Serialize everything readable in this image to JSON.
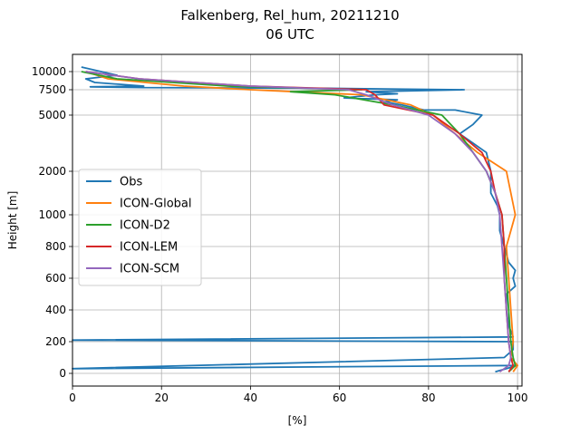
{
  "chart_data": {
    "type": "line",
    "title": "Falkenberg, Rel_hum, 20211210",
    "subtitle": "06 UTC",
    "xlabel": "[%]",
    "ylabel": "Height [m]",
    "xlim": [
      0,
      101
    ],
    "xticks": [
      0,
      20,
      40,
      60,
      80,
      100
    ],
    "yticks": [
      "0",
      "200",
      "400",
      "600",
      "800",
      "1000",
      "2000",
      "5000",
      "7500",
      "10000"
    ],
    "grid": true,
    "legend_position": "center-left",
    "series": [
      {
        "name": "Obs",
        "color": "#1f77b4",
        "points": [
          [
            95,
            10
          ],
          [
            100,
            50
          ],
          [
            0,
            30
          ],
          [
            97,
            100
          ],
          [
            99,
            150
          ],
          [
            99,
            200
          ],
          [
            0,
            210
          ],
          [
            99,
            230
          ],
          [
            98,
            300
          ],
          [
            97.5,
            400
          ],
          [
            97.5,
            500
          ],
          [
            99.5,
            550
          ],
          [
            99,
            600
          ],
          [
            99.5,
            650
          ],
          [
            98,
            700
          ],
          [
            97,
            800
          ],
          [
            96,
            900
          ],
          [
            96,
            1000
          ],
          [
            95.5,
            1200
          ],
          [
            94,
            1500
          ],
          [
            94,
            2000
          ],
          [
            93,
            3000
          ],
          [
            90,
            3500
          ],
          [
            87,
            4000
          ],
          [
            90,
            4500
          ],
          [
            92,
            5000
          ],
          [
            86,
            5500
          ],
          [
            79,
            5500
          ],
          [
            74,
            6000
          ],
          [
            70,
            6300
          ],
          [
            73,
            6500
          ],
          [
            61,
            6700
          ],
          [
            68,
            7000
          ],
          [
            73,
            7100
          ],
          [
            66,
            7300
          ],
          [
            88,
            7500
          ],
          [
            70,
            7600
          ],
          [
            57,
            7700
          ],
          [
            16,
            7800
          ],
          [
            4,
            7900
          ],
          [
            16,
            8000
          ],
          [
            5,
            8500
          ],
          [
            3,
            9000
          ],
          [
            10,
            9500
          ],
          [
            2,
            10500
          ]
        ]
      },
      {
        "name": "ICON-Global",
        "color": "#ff7f0e",
        "points": [
          [
            99,
            10
          ],
          [
            100,
            50
          ],
          [
            98.5,
            100
          ],
          [
            99,
            200
          ],
          [
            98.5,
            400
          ],
          [
            98,
            600
          ],
          [
            97.5,
            800
          ],
          [
            98.5,
            900
          ],
          [
            99.5,
            1000
          ],
          [
            98.5,
            1500
          ],
          [
            97.5,
            2000
          ],
          [
            91,
            3000
          ],
          [
            86,
            4000
          ],
          [
            81,
            5000
          ],
          [
            76,
            6000
          ],
          [
            65,
            7000
          ],
          [
            40,
            7500
          ],
          [
            25,
            8000
          ],
          [
            8,
            9000
          ],
          [
            3,
            10000
          ]
        ]
      },
      {
        "name": "ICON-D2",
        "color": "#2ca02c",
        "points": [
          [
            98,
            10
          ],
          [
            99.5,
            50
          ],
          [
            99,
            100
          ],
          [
            98.5,
            200
          ],
          [
            98,
            400
          ],
          [
            97.5,
            600
          ],
          [
            97,
            800
          ],
          [
            96.5,
            1000
          ],
          [
            95,
            1500
          ],
          [
            93,
            2000
          ],
          [
            90,
            3000
          ],
          [
            87,
            4000
          ],
          [
            83,
            5000
          ],
          [
            72,
            6000
          ],
          [
            59,
            7000
          ],
          [
            49,
            7300
          ],
          [
            65,
            7500
          ],
          [
            35,
            8000
          ],
          [
            10,
            9000
          ],
          [
            2,
            10000
          ]
        ]
      },
      {
        "name": "ICON-LEM",
        "color": "#d62728",
        "points": [
          [
            98,
            10
          ],
          [
            99,
            50
          ],
          [
            98.5,
            100
          ],
          [
            98,
            200
          ],
          [
            97.5,
            400
          ],
          [
            97,
            600
          ],
          [
            97,
            800
          ],
          [
            96.5,
            1000
          ],
          [
            95,
            1500
          ],
          [
            94,
            2000
          ],
          [
            92,
            3000
          ],
          [
            87,
            4000
          ],
          [
            81,
            5000
          ],
          [
            70,
            6000
          ],
          [
            68,
            7000
          ],
          [
            66,
            7500
          ],
          [
            40,
            8000
          ],
          [
            15,
            9000
          ],
          [
            3,
            10000
          ]
        ]
      },
      {
        "name": "ICON-SCM",
        "color": "#9467bd",
        "points": [
          [
            96,
            10
          ],
          [
            98,
            50
          ],
          [
            98.5,
            100
          ],
          [
            98,
            200
          ],
          [
            97.5,
            400
          ],
          [
            97,
            600
          ],
          [
            96.5,
            800
          ],
          [
            96,
            1000
          ],
          [
            95,
            1500
          ],
          [
            93,
            2000
          ],
          [
            90,
            3000
          ],
          [
            86,
            4000
          ],
          [
            80,
            5000
          ],
          [
            72,
            6000
          ],
          [
            66,
            7000
          ],
          [
            62,
            7500
          ],
          [
            40,
            8000
          ],
          [
            15,
            9000
          ],
          [
            3,
            10000
          ]
        ]
      }
    ]
  }
}
